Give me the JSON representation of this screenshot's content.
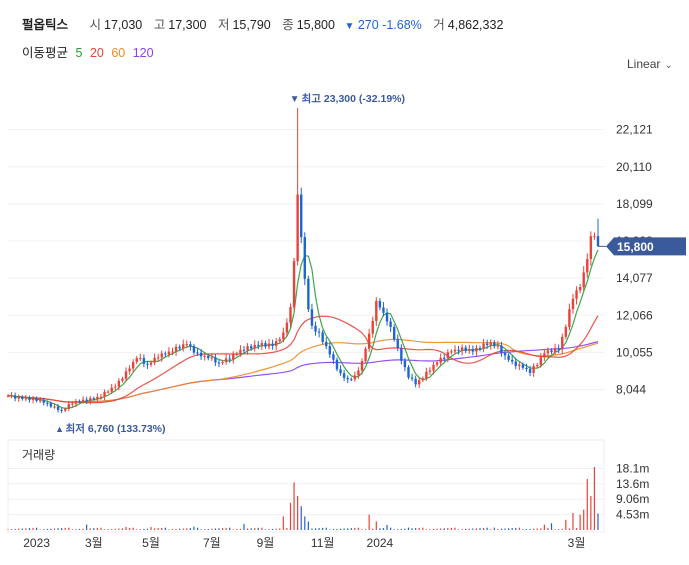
{
  "header": {
    "name": "펄옵틱스",
    "open_label": "시",
    "open": "17,030",
    "high_label": "고",
    "high": "17,300",
    "low_label": "저",
    "low": "15,790",
    "close_label": "종",
    "close": "15,800",
    "change": "270",
    "change_pct": "-1.68%",
    "volume_label": "거",
    "volume": "4,862,332",
    "down_symbol": "▼"
  },
  "ma_legend": {
    "label": "이동평균",
    "items": [
      {
        "period": "5",
        "color": "#2a9d3a"
      },
      {
        "period": "20",
        "color": "#e8433a"
      },
      {
        "period": "60",
        "color": "#f08a24"
      },
      {
        "period": "120",
        "color": "#8a3ff0"
      }
    ]
  },
  "scale_button": {
    "label": "Linear",
    "chevron_icon": "chevron-down-icon"
  },
  "volume_panel": {
    "title": "거래량"
  },
  "colors": {
    "up": "#e8433a",
    "down": "#1e64d6",
    "accent": "#3a5a9c",
    "grid": "#f0f0f0"
  },
  "chart_data": {
    "type": "candlestick",
    "price_axis": {
      "ticks": [
        "22,121",
        "20,110",
        "18,099",
        "16,088",
        "14,077",
        "12,066",
        "10,055",
        "8,044"
      ],
      "ylim": [
        6500,
        24000
      ]
    },
    "current_price_label": "15,800",
    "x_axis_ticks": [
      "2023",
      "3월",
      "5월",
      "7월",
      "9월",
      "11월",
      "2024",
      "3월"
    ],
    "annotations": {
      "high": {
        "text": "최고 23,300 (-32.19%)",
        "value": 23300
      },
      "low": {
        "text": "최저 6,760 (133.73%)",
        "value": 6760
      }
    },
    "price_keypoints": [
      [
        0,
        7700
      ],
      [
        4,
        7600
      ],
      [
        8,
        7450
      ],
      [
        12,
        7200
      ],
      [
        15,
        6900
      ],
      [
        18,
        7300
      ],
      [
        22,
        7500
      ],
      [
        26,
        7700
      ],
      [
        30,
        8200
      ],
      [
        33,
        9000
      ],
      [
        36,
        9800
      ],
      [
        39,
        9300
      ],
      [
        42,
        9900
      ],
      [
        45,
        10100
      ],
      [
        48,
        10300
      ],
      [
        50,
        10500
      ],
      [
        53,
        10000
      ],
      [
        56,
        9800
      ],
      [
        59,
        9400
      ],
      [
        62,
        9800
      ],
      [
        65,
        10200
      ],
      [
        68,
        10300
      ],
      [
        71,
        10500
      ],
      [
        74,
        10500
      ],
      [
        77,
        11000
      ],
      [
        79,
        12400
      ],
      [
        80,
        15000
      ],
      [
        81,
        18500
      ],
      [
        82,
        16500
      ],
      [
        83,
        14000
      ],
      [
        84,
        12500
      ],
      [
        85,
        11500
      ],
      [
        87,
        11000
      ],
      [
        89,
        10300
      ],
      [
        91,
        9600
      ],
      [
        93,
        8900
      ],
      [
        95,
        8600
      ],
      [
        97,
        8700
      ],
      [
        99,
        9500
      ],
      [
        101,
        11000
      ],
      [
        103,
        12800
      ],
      [
        104,
        12600
      ],
      [
        106,
        11800
      ],
      [
        108,
        10800
      ],
      [
        110,
        9600
      ],
      [
        112,
        8800
      ],
      [
        114,
        8400
      ],
      [
        116,
        8700
      ],
      [
        118,
        9100
      ],
      [
        121,
        9700
      ],
      [
        124,
        10200
      ],
      [
        127,
        10200
      ],
      [
        130,
        10100
      ],
      [
        133,
        10500
      ],
      [
        135,
        10600
      ],
      [
        137,
        10300
      ],
      [
        139,
        9800
      ],
      [
        141,
        9500
      ],
      [
        144,
        9300
      ],
      [
        146,
        9000
      ],
      [
        148,
        9400
      ],
      [
        150,
        10000
      ],
      [
        152,
        10200
      ],
      [
        154,
        10300
      ],
      [
        156,
        11500
      ],
      [
        158,
        13000
      ],
      [
        160,
        13600
      ],
      [
        161,
        14300
      ],
      [
        162,
        15300
      ],
      [
        163,
        16300
      ],
      [
        164,
        16500
      ],
      [
        165,
        15800
      ]
    ],
    "volume_axis": {
      "ticks": [
        "18.1m",
        "13.6m",
        "9.06m",
        "4.53m"
      ],
      "ylim": [
        0,
        20000000
      ]
    },
    "volume_spikes": [
      [
        22,
        1600000
      ],
      [
        33,
        900000
      ],
      [
        40,
        900000
      ],
      [
        52,
        1000000
      ],
      [
        66,
        1800000
      ],
      [
        77,
        4000000
      ],
      [
        79,
        8000000
      ],
      [
        80,
        14000000
      ],
      [
        81,
        10000000
      ],
      [
        82,
        7000000
      ],
      [
        83,
        4000000
      ],
      [
        84,
        2500000
      ],
      [
        101,
        4500000
      ],
      [
        103,
        2500000
      ],
      [
        106,
        1500000
      ],
      [
        112,
        700000
      ],
      [
        136,
        700000
      ],
      [
        150,
        1600000
      ],
      [
        152,
        2000000
      ],
      [
        156,
        3000000
      ],
      [
        158,
        5000000
      ],
      [
        160,
        4500000
      ],
      [
        161,
        6000000
      ],
      [
        162,
        15000000
      ],
      [
        163,
        10000000
      ],
      [
        164,
        18500000
      ],
      [
        165,
        4862332
      ]
    ]
  }
}
